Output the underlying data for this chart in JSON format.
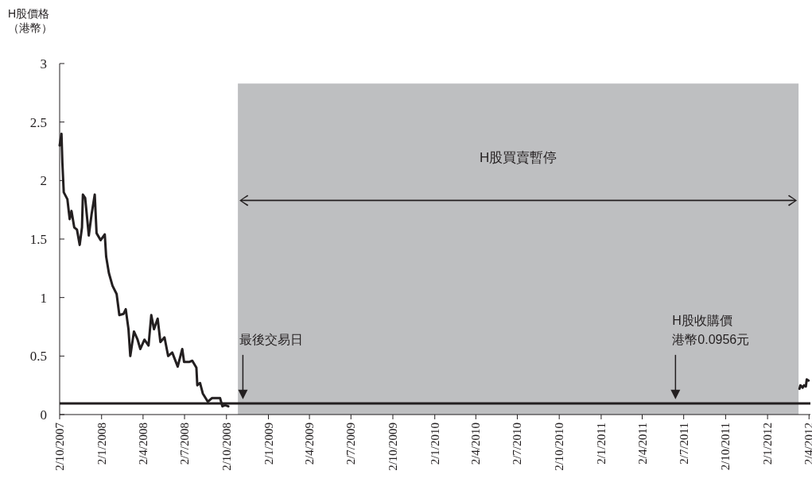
{
  "chart_data": {
    "type": "line",
    "ylabel": "H股價格（港幣）",
    "x": [
      "2007-10-02",
      "2007-10-06",
      "2007-10-08",
      "2007-10-11",
      "2007-10-19",
      "2007-10-24",
      "2007-10-28",
      "2007-11-03",
      "2007-11-09",
      "2007-11-15",
      "2007-11-20",
      "2007-11-22",
      "2007-11-27",
      "2007-12-05",
      "2007-12-11",
      "2007-12-18",
      "2007-12-22",
      "2007-12-31",
      "2008-01-09",
      "2008-01-12",
      "2008-01-18",
      "2008-01-26",
      "2008-02-04",
      "2008-02-10",
      "2008-02-19",
      "2008-02-24",
      "2008-03-01",
      "2008-03-05",
      "2008-03-13",
      "2008-03-21",
      "2008-03-27",
      "2008-04-05",
      "2008-04-14",
      "2008-04-20",
      "2008-04-26",
      "2008-05-04",
      "2008-05-10",
      "2008-05-19",
      "2008-05-27",
      "2008-06-05",
      "2008-06-17",
      "2008-06-27",
      "2008-07-01",
      "2008-07-13",
      "2008-07-19",
      "2008-07-28",
      "2008-07-30",
      "2008-08-05",
      "2008-08-11",
      "2008-08-22",
      "2008-08-31",
      "2008-09-18",
      "2008-09-23",
      "2008-09-29",
      "2008-10-06"
    ],
    "series": [
      {
        "color": "#231f20",
        "values": [
          2.3,
          2.4,
          2.15,
          1.9,
          1.84,
          1.67,
          1.74,
          1.6,
          1.58,
          1.45,
          1.6,
          1.88,
          1.85,
          1.53,
          1.71,
          1.88,
          1.55,
          1.49,
          1.54,
          1.35,
          1.21,
          1.1,
          1.03,
          0.85,
          0.86,
          0.9,
          0.73,
          0.5,
          0.71,
          0.64,
          0.56,
          0.64,
          0.59,
          0.85,
          0.73,
          0.82,
          0.62,
          0.66,
          0.5,
          0.53,
          0.41,
          0.56,
          0.45,
          0.45,
          0.46,
          0.4,
          0.25,
          0.27,
          0.18,
          0.11,
          0.14,
          0.14,
          0.07,
          0.08,
          0.07
        ]
      },
      {
        "color": "#231f20",
        "x": [
          "2012-03-12",
          "2012-03-14",
          "2012-03-19",
          "2012-03-22",
          "2012-03-26",
          "2012-03-28",
          "2012-04-01"
        ],
        "values": [
          0.22,
          0.25,
          0.23,
          0.25,
          0.24,
          0.3,
          0.29
        ]
      }
    ],
    "xlim": [
      "2007-10-02",
      "2012-04-05"
    ],
    "xticks": [
      {
        "value": "2007-10-02",
        "label": "2/10/2007"
      },
      {
        "value": "2008-01-02",
        "label": "2/1/2008"
      },
      {
        "value": "2008-04-02",
        "label": "2/4/2008"
      },
      {
        "value": "2008-07-02",
        "label": "2/7/2008"
      },
      {
        "value": "2008-10-02",
        "label": "2/10/2008"
      },
      {
        "value": "2009-01-02",
        "label": "2/1/2009"
      },
      {
        "value": "2009-04-02",
        "label": "2/4/2009"
      },
      {
        "value": "2009-07-02",
        "label": "2/7/2009"
      },
      {
        "value": "2009-10-02",
        "label": "2/10/2009"
      },
      {
        "value": "2010-01-02",
        "label": "2/1/2010"
      },
      {
        "value": "2010-04-02",
        "label": "2/4/2010"
      },
      {
        "value": "2010-07-02",
        "label": "2/7/2010"
      },
      {
        "value": "2010-10-02",
        "label": "2/10/2010"
      },
      {
        "value": "2011-01-02",
        "label": "2/1/2011"
      },
      {
        "value": "2011-04-02",
        "label": "2/4/2011"
      },
      {
        "value": "2011-07-02",
        "label": "2/7/2011"
      },
      {
        "value": "2011-10-02",
        "label": "2/10/2011"
      },
      {
        "value": "2012-01-02",
        "label": "2/1/2012"
      },
      {
        "value": "2012-04-02",
        "label": "2/4/2012"
      }
    ],
    "ylim": [
      0,
      3
    ],
    "yticks": [
      0,
      0.5,
      1,
      1.5,
      2,
      2.5,
      3
    ],
    "grid": false,
    "bands": [
      {
        "axis": "x",
        "from": "2008-10-27",
        "to": "2012-03-10",
        "label": "H股買賣暫停",
        "color": "#bebfc1"
      }
    ],
    "ref_lines": [
      {
        "axis": "y",
        "value": 0.0956,
        "color": "#231f20"
      }
    ],
    "annotations": [
      {
        "text": "最後交易日",
        "x": "2008-11-07",
        "y": 0.13
      },
      "H股收購價",
      {
        "text": "港幣0.0956元",
        "x": "2011-06-14",
        "y": 0.13
      }
    ]
  }
}
